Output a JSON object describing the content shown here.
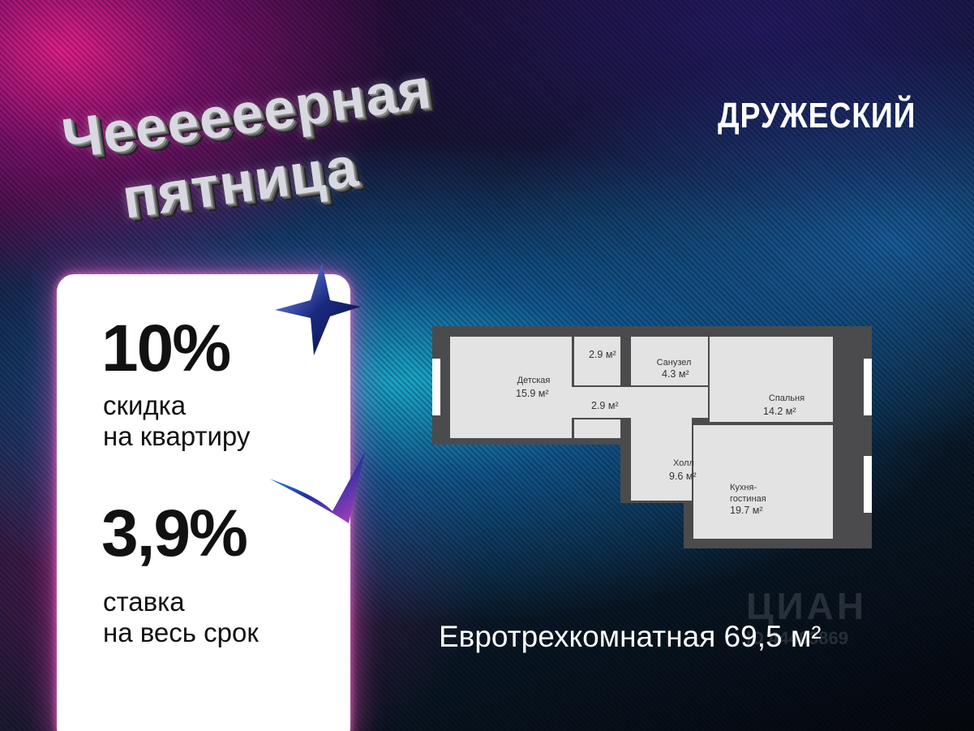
{
  "headline": {
    "line1": "Чеееееерная",
    "line2": "пятница"
  },
  "brand": "ДРУЖЕСКИЙ",
  "offer": {
    "discount_value": "10%",
    "discount_text_1": "скидка",
    "discount_text_2": "на квартиру",
    "rate_value": "3,9%",
    "rate_text_1": "ставка",
    "rate_text_2": "на весь срок"
  },
  "plan": {
    "rooms": [
      {
        "name": "Детская",
        "area": "15.9 м²"
      },
      {
        "name": "",
        "area": "2.9 м²"
      },
      {
        "name": "Санузел",
        "area": "4.3 м²"
      },
      {
        "name": "",
        "area": "2.9 м²"
      },
      {
        "name": "Спальня",
        "area": "14.2 м²"
      },
      {
        "name": "Холл",
        "area": "9.6 м²"
      },
      {
        "name": "Кухня-\nгостиная",
        "area": "19.7 м²"
      }
    ]
  },
  "caption": "Евротрехкомнатная 69,5 м²",
  "watermark": {
    "brand": "ЦИАН",
    "id": "ID 44403869"
  },
  "colors": {
    "card": "#ffffff",
    "glow": "#ff50c8",
    "wall": "#4b4b4d",
    "room": "#e3e3e3"
  }
}
